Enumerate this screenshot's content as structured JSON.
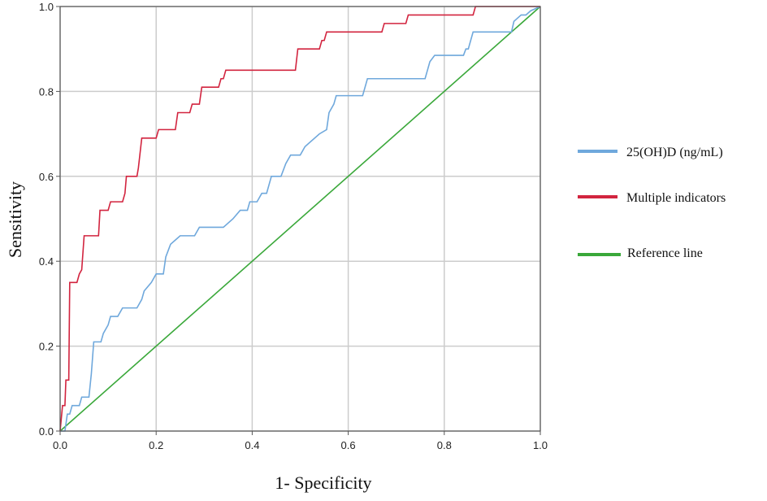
{
  "chart_data": {
    "type": "line",
    "xlabel": "1- Specificity",
    "ylabel": "Sensitivity",
    "xlim": [
      0.0,
      1.0
    ],
    "ylim": [
      0.0,
      1.0
    ],
    "x_ticks": [
      "0.0",
      "0.2",
      "0.4",
      "0.6",
      "0.8",
      "1.0"
    ],
    "y_ticks": [
      "0.0",
      "0.2",
      "0.4",
      "0.6",
      "0.8",
      "1.0"
    ],
    "grid": true,
    "legend_position": "right",
    "series": [
      {
        "name": "25(OH)D (ng/mL)",
        "color": "#6fa8dc",
        "points": [
          [
            0,
            0
          ],
          [
            0.01,
            0
          ],
          [
            0.015,
            0.04
          ],
          [
            0.02,
            0.04
          ],
          [
            0.025,
            0.06
          ],
          [
            0.04,
            0.06
          ],
          [
            0.045,
            0.08
          ],
          [
            0.06,
            0.08
          ],
          [
            0.065,
            0.135
          ],
          [
            0.07,
            0.21
          ],
          [
            0.085,
            0.21
          ],
          [
            0.09,
            0.23
          ],
          [
            0.1,
            0.25
          ],
          [
            0.105,
            0.27
          ],
          [
            0.12,
            0.27
          ],
          [
            0.13,
            0.29
          ],
          [
            0.16,
            0.29
          ],
          [
            0.17,
            0.31
          ],
          [
            0.175,
            0.33
          ],
          [
            0.19,
            0.35
          ],
          [
            0.2,
            0.37
          ],
          [
            0.215,
            0.37
          ],
          [
            0.22,
            0.41
          ],
          [
            0.23,
            0.44
          ],
          [
            0.24,
            0.45
          ],
          [
            0.25,
            0.46
          ],
          [
            0.28,
            0.46
          ],
          [
            0.29,
            0.48
          ],
          [
            0.34,
            0.48
          ],
          [
            0.36,
            0.5
          ],
          [
            0.375,
            0.52
          ],
          [
            0.39,
            0.52
          ],
          [
            0.395,
            0.54
          ],
          [
            0.41,
            0.54
          ],
          [
            0.42,
            0.56
          ],
          [
            0.43,
            0.56
          ],
          [
            0.44,
            0.6
          ],
          [
            0.46,
            0.6
          ],
          [
            0.47,
            0.63
          ],
          [
            0.48,
            0.65
          ],
          [
            0.5,
            0.65
          ],
          [
            0.51,
            0.67
          ],
          [
            0.54,
            0.7
          ],
          [
            0.555,
            0.71
          ],
          [
            0.56,
            0.75
          ],
          [
            0.57,
            0.77
          ],
          [
            0.575,
            0.79
          ],
          [
            0.63,
            0.79
          ],
          [
            0.64,
            0.83
          ],
          [
            0.76,
            0.83
          ],
          [
            0.765,
            0.85
          ],
          [
            0.77,
            0.87
          ],
          [
            0.78,
            0.885
          ],
          [
            0.84,
            0.885
          ],
          [
            0.845,
            0.9
          ],
          [
            0.85,
            0.9
          ],
          [
            0.855,
            0.92
          ],
          [
            0.86,
            0.94
          ],
          [
            0.94,
            0.94
          ],
          [
            0.945,
            0.965
          ],
          [
            0.96,
            0.98
          ],
          [
            0.97,
            0.98
          ],
          [
            0.98,
            0.99
          ],
          [
            1.0,
            1.0
          ]
        ]
      },
      {
        "name": "Multiple indicators",
        "color": "#d2243f",
        "points": [
          [
            0,
            0
          ],
          [
            0.005,
            0.06
          ],
          [
            0.01,
            0.06
          ],
          [
            0.012,
            0.12
          ],
          [
            0.018,
            0.12
          ],
          [
            0.02,
            0.35
          ],
          [
            0.035,
            0.35
          ],
          [
            0.04,
            0.37
          ],
          [
            0.045,
            0.38
          ],
          [
            0.05,
            0.46
          ],
          [
            0.08,
            0.46
          ],
          [
            0.083,
            0.52
          ],
          [
            0.1,
            0.52
          ],
          [
            0.105,
            0.54
          ],
          [
            0.13,
            0.54
          ],
          [
            0.135,
            0.56
          ],
          [
            0.138,
            0.6
          ],
          [
            0.16,
            0.6
          ],
          [
            0.163,
            0.62
          ],
          [
            0.166,
            0.65
          ],
          [
            0.17,
            0.69
          ],
          [
            0.2,
            0.69
          ],
          [
            0.205,
            0.71
          ],
          [
            0.24,
            0.71
          ],
          [
            0.245,
            0.75
          ],
          [
            0.27,
            0.75
          ],
          [
            0.275,
            0.77
          ],
          [
            0.29,
            0.77
          ],
          [
            0.295,
            0.81
          ],
          [
            0.33,
            0.81
          ],
          [
            0.335,
            0.83
          ],
          [
            0.34,
            0.83
          ],
          [
            0.345,
            0.85
          ],
          [
            0.49,
            0.85
          ],
          [
            0.495,
            0.9
          ],
          [
            0.54,
            0.9
          ],
          [
            0.545,
            0.92
          ],
          [
            0.55,
            0.92
          ],
          [
            0.555,
            0.94
          ],
          [
            0.67,
            0.94
          ],
          [
            0.675,
            0.96
          ],
          [
            0.72,
            0.96
          ],
          [
            0.725,
            0.98
          ],
          [
            0.86,
            0.98
          ],
          [
            0.865,
            1.0
          ],
          [
            1.0,
            1.0
          ]
        ]
      },
      {
        "name": "Reference line",
        "color": "#3aa83a",
        "points": [
          [
            0,
            0
          ],
          [
            1,
            1
          ]
        ]
      }
    ]
  }
}
